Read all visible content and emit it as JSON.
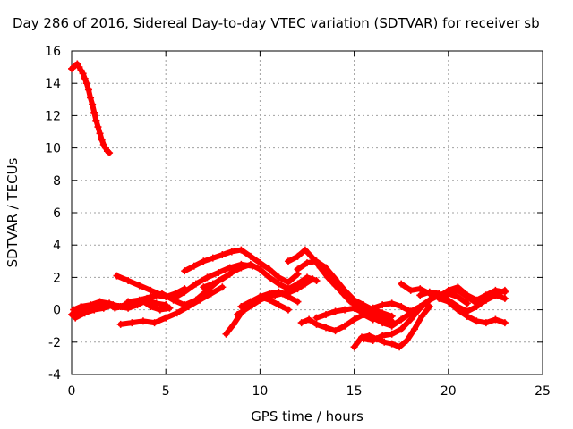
{
  "chart_data": {
    "type": "scatter",
    "title": "Day 286 of 2016, Sidereal Day-to-day VTEC variation (SDTVAR) for receiver sb",
    "xlabel": "GPS time / hours",
    "ylabel": "SDTVAR / TECUs",
    "xlim": [
      0,
      25
    ],
    "ylim": [
      -4,
      16
    ],
    "xticks": [
      0,
      5,
      10,
      15,
      20,
      25
    ],
    "yticks": [
      -4,
      -2,
      0,
      2,
      4,
      6,
      8,
      10,
      12,
      14,
      16
    ],
    "grid": true,
    "legend": "none",
    "marker": "plus",
    "color": "#ff0000",
    "series": [
      {
        "x": [
          0.0,
          0.1,
          0.2,
          0.3,
          0.4,
          0.5,
          0.6,
          0.7,
          0.8,
          0.9,
          1.0,
          1.1,
          1.2,
          1.3,
          1.4,
          1.5,
          1.6,
          1.7,
          1.8,
          1.9,
          2.0
        ],
        "y": [
          14.9,
          15.0,
          15.1,
          15.2,
          15.0,
          14.8,
          14.6,
          14.3,
          14.0,
          13.6,
          13.1,
          12.7,
          12.2,
          11.7,
          11.3,
          10.9,
          10.5,
          10.2,
          10.0,
          9.8,
          9.7
        ]
      },
      {
        "x": [
          0.0,
          0.3,
          0.6,
          1.0,
          1.5,
          2.0,
          2.3,
          2.6,
          3.0,
          3.5,
          4.0,
          4.5,
          5.0,
          5.5,
          6.0
        ],
        "y": [
          -0.3,
          -0.1,
          0.1,
          0.2,
          0.4,
          0.3,
          0.1,
          0.2,
          0.4,
          0.5,
          0.7,
          0.9,
          0.8,
          1.0,
          1.3
        ]
      },
      {
        "x": [
          0.1,
          0.5,
          1.0,
          1.5,
          2.0,
          2.5,
          3.0,
          3.5,
          4.0,
          4.5,
          5.0
        ],
        "y": [
          0.0,
          0.2,
          0.3,
          0.5,
          0.4,
          0.2,
          0.1,
          0.3,
          0.6,
          0.4,
          0.3
        ]
      },
      {
        "x": [
          0.2,
          0.7,
          1.2,
          1.7,
          2.2,
          2.7,
          3.2,
          3.7,
          4.2,
          4.7,
          5.2
        ],
        "y": [
          -0.5,
          -0.2,
          0.0,
          0.1,
          0.3,
          0.2,
          0.4,
          0.6,
          0.2,
          0.0,
          0.1
        ]
      },
      {
        "x": [
          2.4,
          3.0,
          3.6,
          4.2,
          4.8,
          5.4,
          6.0,
          6.6,
          7.2,
          7.8,
          8.4,
          9.0,
          9.6
        ],
        "y": [
          2.1,
          1.8,
          1.5,
          1.2,
          0.9,
          0.7,
          1.1,
          1.6,
          2.0,
          2.3,
          2.6,
          2.8,
          2.7
        ]
      },
      {
        "x": [
          2.6,
          3.2,
          3.8,
          4.4,
          5.0,
          5.6,
          6.2,
          6.8,
          7.4,
          8.0
        ],
        "y": [
          -0.9,
          -0.8,
          -0.7,
          -0.8,
          -0.5,
          -0.2,
          0.2,
          0.6,
          1.0,
          1.4
        ]
      },
      {
        "x": [
          3.0,
          3.6,
          4.2,
          4.8,
          5.4,
          6.0,
          6.6,
          7.2,
          7.8,
          8.4
        ],
        "y": [
          0.5,
          0.6,
          0.8,
          1.0,
          0.6,
          0.3,
          0.6,
          1.2,
          1.8,
          2.2
        ]
      },
      {
        "x": [
          6.0,
          6.5,
          7.0,
          7.5,
          8.0,
          8.5,
          9.0,
          9.5,
          10.0,
          10.5,
          11.0,
          11.5,
          12.0
        ],
        "y": [
          2.4,
          2.7,
          3.0,
          3.2,
          3.4,
          3.6,
          3.7,
          3.3,
          2.9,
          2.5,
          2.0,
          1.7,
          2.2
        ]
      },
      {
        "x": [
          7.0,
          7.5,
          8.0,
          8.5,
          9.0,
          9.5,
          10.0,
          10.5,
          11.0,
          11.5,
          12.0,
          12.5,
          13.0
        ],
        "y": [
          1.4,
          1.6,
          1.9,
          2.3,
          2.6,
          2.8,
          2.5,
          2.0,
          1.6,
          1.3,
          1.6,
          2.0,
          1.8
        ]
      },
      {
        "x": [
          8.2,
          8.6,
          9.0,
          9.5,
          10.0,
          10.5,
          11.0,
          11.5,
          12.0
        ],
        "y": [
          -1.5,
          -0.9,
          -0.2,
          0.4,
          0.8,
          1.0,
          1.1,
          0.8,
          0.5
        ]
      },
      {
        "x": [
          8.8,
          9.2,
          9.6,
          10.0,
          10.4,
          10.8,
          11.2,
          11.6,
          12.0,
          12.4,
          12.8
        ],
        "y": [
          -0.3,
          0.0,
          0.3,
          0.6,
          0.8,
          0.9,
          1.0,
          1.1,
          1.3,
          1.6,
          1.9
        ]
      },
      {
        "x": [
          9.0,
          9.5,
          10.0,
          10.5,
          11.0,
          11.5
        ],
        "y": [
          0.2,
          0.5,
          0.8,
          0.6,
          0.3,
          0.0
        ]
      },
      {
        "x": [
          11.5,
          12.0,
          12.4,
          12.8,
          13.2,
          13.6,
          14.0,
          14.4,
          14.8,
          15.2,
          15.6,
          16.0,
          16.5,
          17.0
        ],
        "y": [
          3.0,
          3.3,
          3.7,
          3.2,
          2.6,
          2.0,
          1.5,
          1.0,
          0.5,
          0.2,
          -0.1,
          -0.3,
          -0.5,
          -0.7
        ]
      },
      {
        "x": [
          12.0,
          12.5,
          13.0,
          13.5,
          14.0,
          14.5,
          15.0,
          15.5,
          16.0,
          16.5,
          17.0
        ],
        "y": [
          2.5,
          2.9,
          3.0,
          2.6,
          1.9,
          1.2,
          0.6,
          0.3,
          0.0,
          -0.2,
          -0.4
        ]
      },
      {
        "x": [
          12.2,
          12.6,
          13.0,
          13.5,
          14.0,
          14.5,
          15.0,
          15.5,
          16.0
        ],
        "y": [
          -0.8,
          -0.6,
          -0.9,
          -1.1,
          -1.3,
          -1.0,
          -0.6,
          -0.3,
          -0.6
        ]
      },
      {
        "x": [
          13.0,
          13.5,
          14.0,
          14.5,
          15.0,
          15.5,
          16.0,
          16.5,
          17.0,
          17.5,
          18.0
        ],
        "y": [
          -0.5,
          -0.3,
          -0.1,
          0.0,
          0.1,
          -0.2,
          -0.5,
          -0.8,
          -1.0,
          -0.6,
          -0.2
        ]
      },
      {
        "x": [
          15.0,
          15.4,
          15.8,
          16.2,
          16.6,
          17.0,
          17.4,
          17.8,
          18.2,
          18.6,
          19.0
        ],
        "y": [
          -2.3,
          -1.7,
          -1.6,
          -1.8,
          -2.0,
          -2.1,
          -2.3,
          -1.9,
          -1.2,
          -0.4,
          0.2
        ]
      },
      {
        "x": [
          15.5,
          16.0,
          16.5,
          17.0,
          17.5,
          18.0,
          18.5,
          19.0,
          19.5,
          20.0
        ],
        "y": [
          -1.8,
          -1.9,
          -1.6,
          -1.5,
          -1.2,
          -0.6,
          0.1,
          0.6,
          0.9,
          1.1
        ]
      },
      {
        "x": [
          16.0,
          16.5,
          17.0,
          17.5,
          18.0,
          18.5,
          19.0,
          19.5,
          20.0,
          20.5,
          21.0
        ],
        "y": [
          0.1,
          0.3,
          0.4,
          0.2,
          -0.1,
          0.2,
          0.6,
          0.9,
          1.0,
          0.8,
          0.4
        ]
      },
      {
        "x": [
          17.5,
          18.0,
          18.5,
          19.0,
          19.5,
          20.0,
          20.5,
          21.0,
          21.5,
          22.0,
          22.5,
          23.0
        ],
        "y": [
          1.6,
          1.2,
          1.3,
          1.0,
          0.8,
          1.2,
          1.4,
          0.9,
          0.6,
          0.9,
          1.2,
          1.1
        ]
      },
      {
        "x": [
          18.5,
          19.0,
          19.5,
          20.0,
          20.5,
          21.0,
          21.5,
          22.0,
          22.5,
          23.0
        ],
        "y": [
          0.9,
          1.1,
          1.0,
          0.6,
          0.2,
          -0.1,
          0.2,
          0.6,
          0.9,
          1.2
        ]
      },
      {
        "x": [
          19.5,
          20.0,
          20.5,
          21.0,
          21.5,
          22.0,
          22.5,
          23.0
        ],
        "y": [
          0.7,
          0.5,
          0.0,
          -0.4,
          -0.7,
          -0.8,
          -0.6,
          -0.8
        ]
      },
      {
        "x": [
          20.0,
          20.5,
          21.0,
          21.5,
          22.0,
          22.5,
          23.0
        ],
        "y": [
          1.0,
          1.2,
          0.8,
          0.4,
          0.6,
          0.9,
          0.7
        ]
      }
    ]
  }
}
